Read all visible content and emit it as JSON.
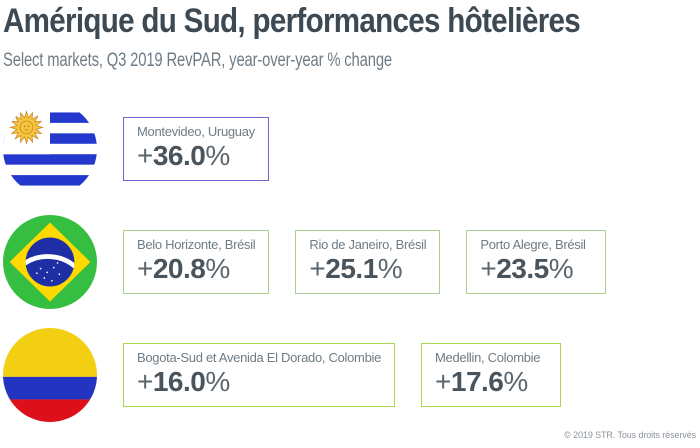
{
  "header": {
    "title": "Amérique du Sud, performances hôtelières",
    "subtitle": "Select markets, Q3 2019 RevPAR, year-over-year % change"
  },
  "rows": [
    {
      "flag": "uruguay-flag-icon",
      "country": "Uruguay",
      "accent": "#6B66C7",
      "markets": [
        {
          "label": "Montevideo, Uruguay",
          "value": "+36.0%"
        }
      ]
    },
    {
      "flag": "brazil-flag-icon",
      "country": "Brésil",
      "accent": "#AACF96",
      "markets": [
        {
          "label": "Belo Horizonte, Brésil",
          "value": "+20.8%"
        },
        {
          "label": "Rio de Janeiro, Brésil",
          "value": "+25.1%"
        },
        {
          "label": "Porto Alegre, Brésil",
          "value": "+23.5%"
        }
      ]
    },
    {
      "flag": "colombia-flag-icon",
      "country": "Colombie",
      "accent": "#A9D74F",
      "markets": [
        {
          "label": "Bogota-Sud et Avenida El Dorado, Colombie",
          "value": "+16.0%"
        },
        {
          "label": "Medellin, Colombie",
          "value": "+17.6%"
        }
      ]
    }
  ],
  "footer": {
    "copyright": "© 2019 STR. Tous droits réservés"
  },
  "colors": {
    "title_ink": "#3E4A53",
    "body_grey": "#6F7B84",
    "value_ink": "#49545C",
    "uruguay_accent": "#6B66C7",
    "brazil_accent": "#AACF96",
    "colombia_accent": "#A9D74F"
  },
  "chart_data": {
    "type": "table",
    "title": "Amérique du Sud, performances hôtelières",
    "subtitle": "Select markets, Q3 2019 RevPAR, year-over-year % change",
    "metric": "RevPAR year-over-year % change, Q3 2019",
    "groups": [
      {
        "country": "Uruguay",
        "markets": [
          {
            "name": "Montevideo, Uruguay",
            "value": 36.0
          }
        ]
      },
      {
        "country": "Brésil",
        "markets": [
          {
            "name": "Belo Horizonte, Brésil",
            "value": 20.8
          },
          {
            "name": "Rio de Janeiro, Brésil",
            "value": 25.1
          },
          {
            "name": "Porto Alegre, Brésil",
            "value": 23.5
          }
        ]
      },
      {
        "country": "Colombie",
        "markets": [
          {
            "name": "Bogota-Sud et Avenida El Dorado, Colombie",
            "value": 16.0
          },
          {
            "name": "Medellin, Colombie",
            "value": 17.6
          }
        ]
      }
    ]
  }
}
